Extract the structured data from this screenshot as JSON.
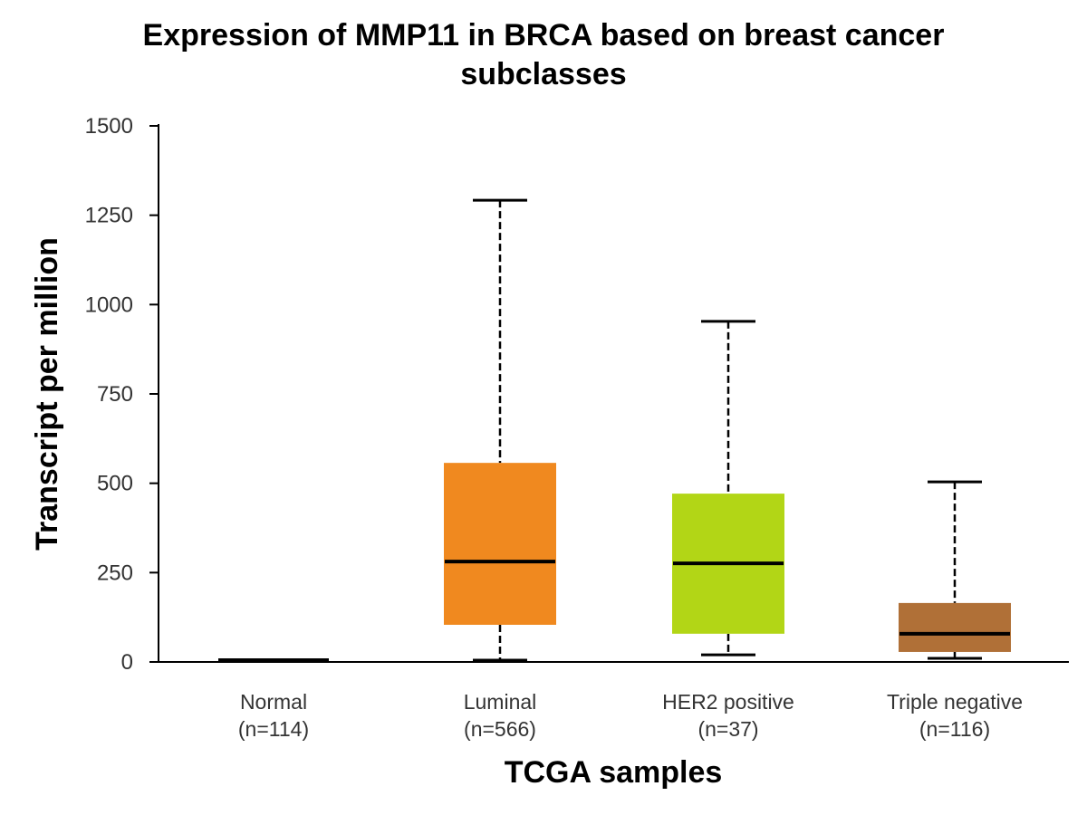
{
  "chart_data": {
    "type": "box",
    "title": "Expression of MMP11 in BRCA based on breast cancer subclasses",
    "title_lines": [
      "Expression of MMP11 in BRCA based on breast cancer",
      "subclasses"
    ],
    "xlabel": "TCGA samples",
    "ylabel": "Transcript per million",
    "ylim": [
      0,
      1500
    ],
    "yticks": [
      0,
      250,
      500,
      750,
      1000,
      1250,
      1500
    ],
    "ytick_labels": [
      "0",
      "250",
      "500",
      "750",
      "1000",
      "1250",
      "1500"
    ],
    "grid": false,
    "legend": "none",
    "categories": [
      {
        "name": "Normal",
        "n_label": "(n=114)"
      },
      {
        "name": "Luminal",
        "n_label": "(n=566)"
      },
      {
        "name": "HER2 positive",
        "n_label": "(n=37)"
      },
      {
        "name": "Triple negative",
        "n_label": "(n=116)"
      }
    ],
    "boxes": [
      {
        "category": "Normal",
        "whisker_low": 2,
        "q1": 3,
        "median": 5,
        "q3": 8,
        "whisker_high": 12,
        "color": "#000000"
      },
      {
        "category": "Luminal",
        "whisker_low": 5,
        "q1": 104,
        "median": 281,
        "q3": 557,
        "whisker_high": 1292,
        "color": "#F0891F"
      },
      {
        "category": "HER2 positive",
        "whisker_low": 20,
        "q1": 79,
        "median": 276,
        "q3": 471,
        "whisker_high": 953,
        "color": "#B2D616"
      },
      {
        "category": "Triple negative",
        "whisker_low": 10,
        "q1": 28,
        "median": 79,
        "q3": 165,
        "whisker_high": 504,
        "color": "#B07037"
      }
    ]
  }
}
